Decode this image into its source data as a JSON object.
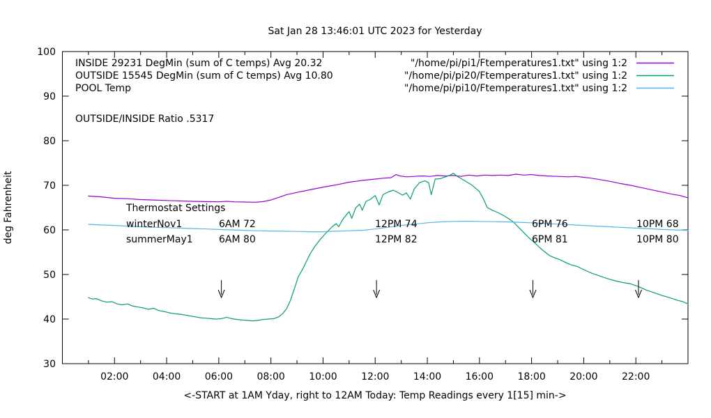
{
  "title": "Sat Jan 28 13:46:01 UTC 2023 for Yesterday",
  "axes": {
    "y_label": "deg Fahrenheit",
    "x_label": "<-START at 1AM Yday, right to 12AM Today:  Temp Readings every 1[15] min->",
    "y_tick_labels": [
      "30",
      "40",
      "50",
      "60",
      "70",
      "80",
      "90",
      "100"
    ],
    "x_tick_labels": [
      "02:00",
      "04:00",
      "06:00",
      "08:00",
      "10:00",
      "12:00",
      "14:00",
      "16:00",
      "18:00",
      "20:00",
      "22:00"
    ]
  },
  "annotations": {
    "ratio_text": "OUTSIDE/INSIDE Ratio .5317",
    "thermostat": {
      "title": "Thermostat Settings",
      "rows": [
        {
          "label": "winterNov1",
          "settings": [
            "6AM 72",
            "12PM 74",
            "6PM 76",
            "10PM 68"
          ]
        },
        {
          "label": "summerMay1",
          "settings": [
            "6AM 80",
            "12PM 82",
            "6PM 81",
            "10PM 80"
          ]
        }
      ]
    }
  },
  "chart_data": {
    "type": "line",
    "title": "Sat Jan 28 13:46:01 UTC 2023 for Yesterday",
    "xlabel": "<-START at 1AM Yday, right to 12AM Today:  Temp Readings every 1[15] min->",
    "ylabel": "deg Fahrenheit",
    "ylim": [
      30,
      100
    ],
    "x_axis_hours": [
      0,
      24
    ],
    "x_major_tick_hours": [
      2,
      4,
      6,
      8,
      10,
      12,
      14,
      16,
      18,
      20,
      22
    ],
    "x_minor_tick_hours": [
      1,
      3,
      5,
      7,
      9,
      11,
      13,
      15,
      17,
      19,
      21,
      23
    ],
    "y_tick_values": [
      30,
      40,
      50,
      60,
      70,
      80,
      90,
      100
    ],
    "grid": false,
    "legend_position": "top-left-inside",
    "arrow_marker_hours": [
      6.1,
      12.05,
      18.05,
      22.1
    ],
    "series": [
      {
        "name": "INSIDE",
        "label": "INSIDE 29231 DegMin (sum of C temps) Avg 20.32",
        "file_label": "\"/home/pi/pi1/Ftemperatures1.txt\" using 1:2",
        "color": "#9400d3",
        "points_hour_degF": [
          [
            1,
            67.6
          ],
          [
            1.5,
            67.4
          ],
          [
            2,
            67.1
          ],
          [
            2.5,
            67
          ],
          [
            3,
            66.8
          ],
          [
            3.5,
            66.7
          ],
          [
            4,
            66.6
          ],
          [
            4.5,
            66.5
          ],
          [
            5,
            66.4
          ],
          [
            5.5,
            66.35
          ],
          [
            6,
            66.3
          ],
          [
            6.3,
            66.4
          ],
          [
            6.6,
            66.3
          ],
          [
            7,
            66.25
          ],
          [
            7.4,
            66.2
          ],
          [
            7.7,
            66.35
          ],
          [
            8,
            66.7
          ],
          [
            8.3,
            67.3
          ],
          [
            8.6,
            67.9
          ],
          [
            9,
            68.4
          ],
          [
            9.5,
            69
          ],
          [
            10,
            69.6
          ],
          [
            10.5,
            70.1
          ],
          [
            11,
            70.7
          ],
          [
            11.5,
            71.1
          ],
          [
            12,
            71.4
          ],
          [
            12.3,
            71.6
          ],
          [
            12.6,
            71.7
          ],
          [
            12.8,
            72.4
          ],
          [
            12.95,
            72.1
          ],
          [
            13.2,
            71.9
          ],
          [
            13.5,
            72
          ],
          [
            13.8,
            72.1
          ],
          [
            14.1,
            72
          ],
          [
            14.4,
            72.2
          ],
          [
            14.7,
            72.1
          ],
          [
            15,
            72.2
          ],
          [
            15.3,
            72
          ],
          [
            15.6,
            72.3
          ],
          [
            15.9,
            72.1
          ],
          [
            16.2,
            72.3
          ],
          [
            16.5,
            72.2
          ],
          [
            16.8,
            72.3
          ],
          [
            17.1,
            72.2
          ],
          [
            17.4,
            72.5
          ],
          [
            17.7,
            72.3
          ],
          [
            18,
            72.4
          ],
          [
            18.3,
            72.2
          ],
          [
            18.6,
            72.1
          ],
          [
            19,
            72
          ],
          [
            19.4,
            71.9
          ],
          [
            19.7,
            72
          ],
          [
            20,
            71.8
          ],
          [
            20.3,
            71.6
          ],
          [
            20.6,
            71.3
          ],
          [
            21,
            70.9
          ],
          [
            21.4,
            70.4
          ],
          [
            21.8,
            70
          ],
          [
            22.2,
            69.5
          ],
          [
            22.6,
            69
          ],
          [
            23,
            68.5
          ],
          [
            23.4,
            68
          ],
          [
            23.7,
            67.7
          ],
          [
            24,
            67.2
          ]
        ]
      },
      {
        "name": "OUTSIDE",
        "label": "OUTSIDE 15545 DegMin (sum of C temps) Avg 10.80",
        "file_label": "\"/home/pi/pi20/Ftemperatures1.txt\" using 1:2",
        "color": "#009e73",
        "points_hour_degF": [
          [
            1,
            44.8
          ],
          [
            1.15,
            44.5
          ],
          [
            1.3,
            44.6
          ],
          [
            1.5,
            44.1
          ],
          [
            1.7,
            43.8
          ],
          [
            1.9,
            43.9
          ],
          [
            2.1,
            43.4
          ],
          [
            2.3,
            43.2
          ],
          [
            2.5,
            43.4
          ],
          [
            2.7,
            42.9
          ],
          [
            2.9,
            42.7
          ],
          [
            3.1,
            42.5
          ],
          [
            3.3,
            42.2
          ],
          [
            3.5,
            42.4
          ],
          [
            3.7,
            41.9
          ],
          [
            3.9,
            41.7
          ],
          [
            4.1,
            41.4
          ],
          [
            4.3,
            41.2
          ],
          [
            4.5,
            41.1
          ],
          [
            4.7,
            40.9
          ],
          [
            4.9,
            40.7
          ],
          [
            5.1,
            40.5
          ],
          [
            5.3,
            40.3
          ],
          [
            5.5,
            40.2
          ],
          [
            5.7,
            40.1
          ],
          [
            5.9,
            40
          ],
          [
            6.1,
            40.1
          ],
          [
            6.3,
            40.4
          ],
          [
            6.5,
            40.1
          ],
          [
            6.7,
            39.9
          ],
          [
            6.9,
            39.8
          ],
          [
            7.1,
            39.7
          ],
          [
            7.3,
            39.6
          ],
          [
            7.5,
            39.7
          ],
          [
            7.7,
            39.9
          ],
          [
            7.9,
            40
          ],
          [
            8.1,
            40.1
          ],
          [
            8.3,
            40.5
          ],
          [
            8.45,
            41.2
          ],
          [
            8.6,
            42.3
          ],
          [
            8.75,
            44.2
          ],
          [
            8.9,
            46.8
          ],
          [
            9.05,
            49.5
          ],
          [
            9.2,
            51
          ],
          [
            9.35,
            52.8
          ],
          [
            9.5,
            54.6
          ],
          [
            9.7,
            56.4
          ],
          [
            9.9,
            57.9
          ],
          [
            10.05,
            58.9
          ],
          [
            10.2,
            59.8
          ],
          [
            10.35,
            60.7
          ],
          [
            10.5,
            61.4
          ],
          [
            10.6,
            60.7
          ],
          [
            10.75,
            62.3
          ],
          [
            10.9,
            63.4
          ],
          [
            11,
            64.1
          ],
          [
            11.1,
            62.6
          ],
          [
            11.25,
            64.9
          ],
          [
            11.4,
            65.8
          ],
          [
            11.5,
            64.4
          ],
          [
            11.65,
            66.4
          ],
          [
            11.8,
            66.8
          ],
          [
            12,
            67.7
          ],
          [
            12.15,
            65.6
          ],
          [
            12.3,
            67.9
          ],
          [
            12.5,
            68.5
          ],
          [
            12.7,
            68.9
          ],
          [
            12.9,
            68.3
          ],
          [
            13.05,
            67.8
          ],
          [
            13.2,
            68.3
          ],
          [
            13.35,
            66.9
          ],
          [
            13.5,
            69.2
          ],
          [
            13.7,
            70.6
          ],
          [
            13.9,
            71
          ],
          [
            14.05,
            70.6
          ],
          [
            14.15,
            67.9
          ],
          [
            14.3,
            71.4
          ],
          [
            14.5,
            71.5
          ],
          [
            14.7,
            71.9
          ],
          [
            14.85,
            72.2
          ],
          [
            15,
            72.7
          ],
          [
            15.15,
            72
          ],
          [
            15.3,
            71.5
          ],
          [
            15.5,
            70.8
          ],
          [
            15.7,
            70.1
          ],
          [
            15.9,
            69.1
          ],
          [
            16,
            68.6
          ],
          [
            16.15,
            67
          ],
          [
            16.3,
            65
          ],
          [
            16.5,
            64.4
          ],
          [
            16.7,
            63.9
          ],
          [
            16.9,
            63.3
          ],
          [
            17.1,
            62.6
          ],
          [
            17.3,
            61.8
          ],
          [
            17.5,
            60.6
          ],
          [
            17.7,
            59.4
          ],
          [
            17.9,
            58.2
          ],
          [
            18.1,
            57.2
          ],
          [
            18.3,
            56.1
          ],
          [
            18.5,
            55.1
          ],
          [
            18.7,
            54.2
          ],
          [
            18.9,
            53.7
          ],
          [
            19.1,
            53.3
          ],
          [
            19.3,
            52.7
          ],
          [
            19.5,
            52.2
          ],
          [
            19.75,
            51.8
          ],
          [
            20,
            51.1
          ],
          [
            20.3,
            50.3
          ],
          [
            20.6,
            49.7
          ],
          [
            20.9,
            49.1
          ],
          [
            21.2,
            48.6
          ],
          [
            21.5,
            48.2
          ],
          [
            21.8,
            47.9
          ],
          [
            22.1,
            47.3
          ],
          [
            22.4,
            46.5
          ],
          [
            22.7,
            45.9
          ],
          [
            23,
            45.3
          ],
          [
            23.3,
            44.8
          ],
          [
            23.6,
            44.2
          ],
          [
            23.8,
            43.9
          ],
          [
            24,
            43.4
          ]
        ]
      },
      {
        "name": "POOL",
        "label": "POOL Temp",
        "file_label": "\"/home/pi/pi10/Ftemperatures1.txt\" using 1:2",
        "color": "#56b4e9",
        "points_hour_degF": [
          [
            1,
            61.25
          ],
          [
            1.5,
            61.1
          ],
          [
            2,
            61
          ],
          [
            2.5,
            60.85
          ],
          [
            3,
            60.7
          ],
          [
            3.5,
            60.6
          ],
          [
            4,
            60.5
          ],
          [
            4.5,
            60.4
          ],
          [
            5,
            60.3
          ],
          [
            5.5,
            60.2
          ],
          [
            6,
            60.1
          ],
          [
            6.5,
            60
          ],
          [
            7,
            59.9
          ],
          [
            7.5,
            59.8
          ],
          [
            8,
            59.75
          ],
          [
            8.5,
            59.7
          ],
          [
            9,
            59.65
          ],
          [
            9.5,
            59.6
          ],
          [
            10,
            59.6
          ],
          [
            10.5,
            59.7
          ],
          [
            11,
            59.8
          ],
          [
            11.5,
            59.9
          ],
          [
            12,
            60.2
          ],
          [
            12.5,
            60.6
          ],
          [
            13,
            61
          ],
          [
            13.5,
            61.3
          ],
          [
            14,
            61.6
          ],
          [
            14.5,
            61.8
          ],
          [
            15,
            61.9
          ],
          [
            15.5,
            61.95
          ],
          [
            16,
            61.9
          ],
          [
            16.5,
            61.85
          ],
          [
            17,
            61.8
          ],
          [
            17.5,
            61.7
          ],
          [
            18,
            61.6
          ],
          [
            18.5,
            61.45
          ],
          [
            19,
            61.3
          ],
          [
            19.5,
            61.15
          ],
          [
            20,
            61
          ],
          [
            20.5,
            60.85
          ],
          [
            21,
            60.7
          ],
          [
            21.5,
            60.55
          ],
          [
            22,
            60.4
          ],
          [
            22.5,
            60.25
          ],
          [
            23,
            60.1
          ],
          [
            23.5,
            60
          ],
          [
            24,
            59.9
          ]
        ]
      }
    ]
  }
}
